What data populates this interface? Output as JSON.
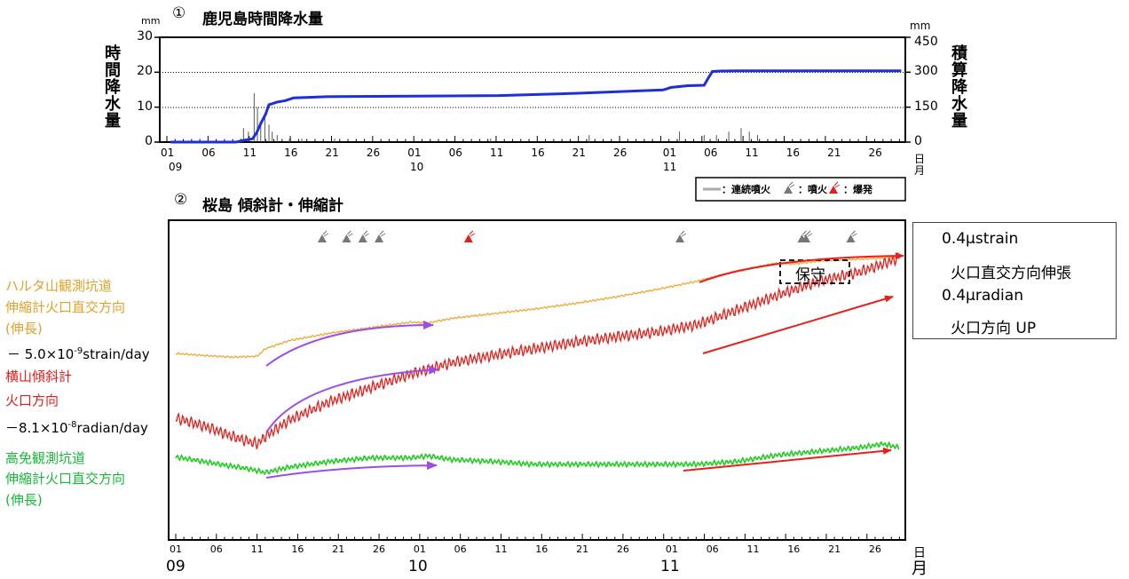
{
  "panel1": {
    "number": "①",
    "title": "鹿児島時間降水量",
    "y_left_label": "時間降水量",
    "y_right_label": "積算降水量",
    "y_left_unit": "mm",
    "y_right_unit": "mm",
    "y_left_ticks": [
      "0",
      "10",
      "20",
      "30"
    ],
    "y_right_ticks": [
      "0",
      "150",
      "300",
      "450"
    ],
    "x_day_ticks": [
      "01",
      "06",
      "11",
      "16",
      "21",
      "26",
      "01",
      "06",
      "11",
      "16",
      "21",
      "26",
      "01",
      "06",
      "11",
      "16",
      "21",
      "26"
    ],
    "month_labels": [
      "09",
      "10",
      "11"
    ],
    "x_unit_top": "日",
    "x_unit_bottom": "月"
  },
  "panel2": {
    "number": "②",
    "title": "桜島 傾斜計・伸縮計",
    "x_day_ticks": [
      "01",
      "06",
      "11",
      "16",
      "21",
      "26",
      "01",
      "06",
      "11",
      "16",
      "21",
      "26",
      "01",
      "06",
      "11",
      "16",
      "21",
      "26"
    ],
    "month_labels": [
      "09",
      "10",
      "11"
    ],
    "x_unit_top": "日",
    "x_unit_bottom": "月",
    "maintenance_label": "保守"
  },
  "legend": {
    "continuous": "：連続噴火",
    "eruption": "：噴火",
    "explosion": "：爆発"
  },
  "series_labels": {
    "harutayama": [
      "ハルタ山観測坑道",
      "伸縮計火口直交方向",
      "(伸長)"
    ],
    "harutayama_rate_prefix": "－ 5.0×10",
    "harutayama_rate_exp": "-9",
    "harutayama_rate_suffix": "strain/day",
    "yokoyama": [
      "横山傾斜計",
      "火口方向"
    ],
    "yokoyama_rate_prefix": "－8.1×10",
    "yokoyama_rate_exp": "-8",
    "yokoyama_rate_suffix": "radian/day",
    "takamenu": [
      "高免観測坑道",
      "伸縮計火口直交方向",
      "(伸長)"
    ]
  },
  "scale": {
    "strain": "0.4μstrain",
    "strain_dir": "火口直交方向伸張",
    "radian": "0.4μradian",
    "radian_dir": "火口方向 UP"
  },
  "chart_data": [
    {
      "type": "bar",
      "title": "鹿児島時間降水量",
      "xlabel": "日 / 月",
      "ylabel": "時間降水量",
      "ylim": [
        0,
        30
      ],
      "y2label": "積算降水量",
      "y2lim": [
        0,
        450
      ],
      "grid": "horizontal dotted at 10 and 20",
      "series": [
        {
          "name": "hourly_precipitation_mm_spikes",
          "x": [
            9.6,
            9.9,
            10.5,
            11.2,
            11.6,
            12.0,
            12.5,
            13.0,
            13.4,
            14.0,
            15.5,
            17.0,
            21.0,
            40.0,
            52.0,
            63.0,
            66.0,
            67.5,
            69.0,
            70.5,
            71.5,
            72.5
          ],
          "values": [
            1,
            4,
            3,
            14,
            10,
            6,
            8,
            5,
            3,
            2,
            1,
            1,
            1,
            1,
            2,
            3,
            2,
            2,
            3,
            4,
            3,
            2
          ]
        },
        {
          "name": "cumulative_precipitation_mm",
          "x": [
            1,
            9,
            10,
            11,
            11.5,
            12,
            12.6,
            13,
            14,
            15,
            16,
            20,
            41,
            51,
            61,
            62,
            64,
            66,
            66.5,
            67,
            68,
            70,
            78,
            90
          ],
          "values": [
            0,
            0,
            8,
            14,
            40,
            80,
            120,
            160,
            172,
            178,
            190,
            195,
            200,
            210,
            224,
            235,
            242,
            244,
            275,
            303,
            305,
            306,
            306,
            306
          ]
        }
      ]
    },
    {
      "type": "line",
      "title": "桜島 傾斜計・伸縮計",
      "xlabel": "日 / 月",
      "ylabel": "",
      "x_range": [
        1,
        90
      ],
      "series": [
        {
          "name": "ハルタ山観測坑道 伸縮計火口直交方向",
          "color": "#f0a830",
          "x": [
            1,
            4,
            8,
            11,
            12,
            15,
            20,
            25,
            30,
            32,
            35,
            40,
            45,
            50,
            55,
            60,
            65,
            70,
            75,
            77,
            80,
            85,
            90
          ],
          "values": [
            0.0,
            -0.02,
            -0.04,
            -0.03,
            0.05,
            0.14,
            0.22,
            0.28,
            0.34,
            0.33,
            0.38,
            0.43,
            0.48,
            0.54,
            0.61,
            0.69,
            0.78,
            0.89,
            0.98,
            0.97,
            1.0,
            1.02,
            1.04
          ]
        },
        {
          "name": "横山傾斜計 火口方向",
          "color": "#e0201c",
          "x": [
            1,
            5,
            8,
            11,
            12,
            15,
            20,
            25,
            30,
            35,
            40,
            45,
            50,
            55,
            60,
            65,
            70,
            75,
            80,
            85,
            89,
            90
          ],
          "values": [
            -0.7,
            -0.8,
            -0.9,
            -0.98,
            -0.9,
            -0.72,
            -0.52,
            -0.37,
            -0.22,
            -0.1,
            -0.02,
            0.05,
            0.12,
            0.18,
            0.23,
            0.31,
            0.47,
            0.63,
            0.78,
            0.88,
            1.0,
            1.04
          ]
        },
        {
          "name": "高免観測坑道 伸縮計火口直交方向",
          "color": "#22cc22",
          "x": [
            1,
            5,
            10,
            12,
            15,
            20,
            25,
            30,
            32,
            35,
            40,
            45,
            50,
            55,
            60,
            65,
            70,
            75,
            80,
            85,
            88,
            90
          ],
          "values": [
            -1.12,
            -1.18,
            -1.25,
            -1.29,
            -1.23,
            -1.17,
            -1.13,
            -1.13,
            -1.11,
            -1.15,
            -1.17,
            -1.2,
            -1.2,
            -1.2,
            -1.2,
            -1.2,
            -1.17,
            -1.1,
            -1.06,
            -1.02,
            -0.98,
            -1.02
          ]
        }
      ],
      "events": {
        "eruption_days": [
          19,
          22,
          24,
          26,
          63,
          78,
          78.5,
          84
        ],
        "explosion_days": [
          37
        ]
      },
      "annotations": [
        "保守"
      ]
    }
  ]
}
